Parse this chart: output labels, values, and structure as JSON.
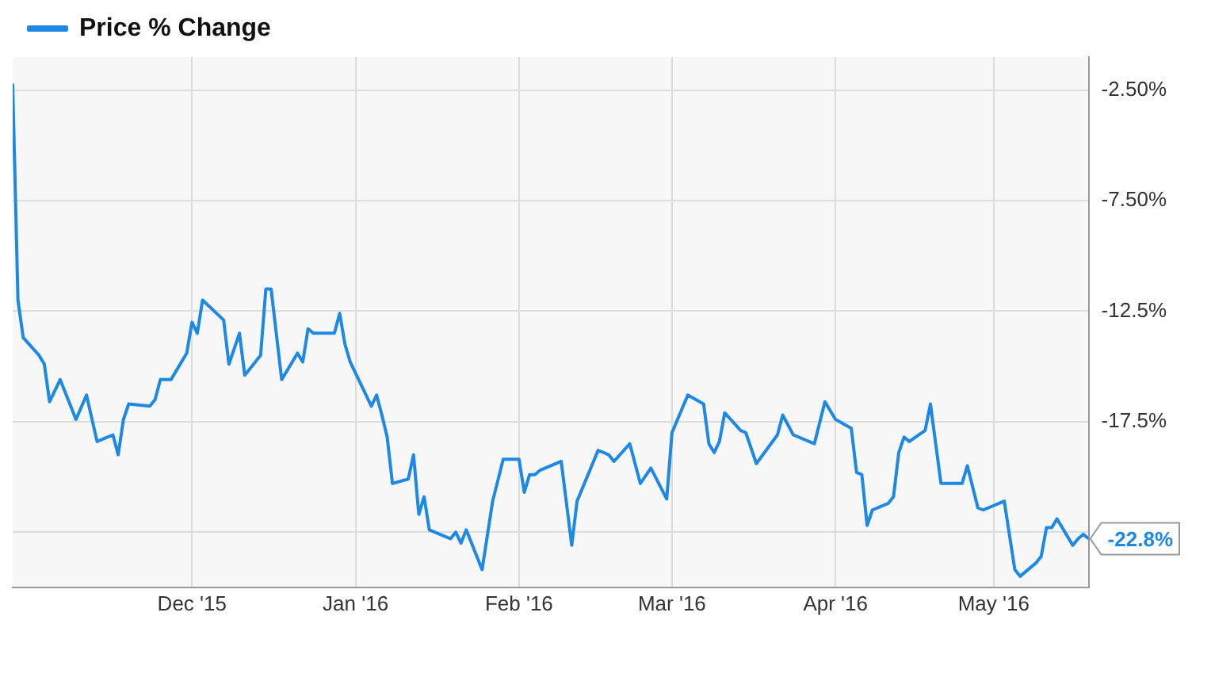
{
  "chart_data": {
    "type": "line",
    "x": [
      "2015-10-28",
      "2015-10-29",
      "2015-10-30",
      "2015-11-02",
      "2015-11-03",
      "2015-11-04",
      "2015-11-06",
      "2015-11-09",
      "2015-11-11",
      "2015-11-13",
      "2015-11-16",
      "2015-11-17",
      "2015-11-18",
      "2015-11-19",
      "2015-11-23",
      "2015-11-24",
      "2015-11-25",
      "2015-11-27",
      "2015-11-30",
      "2015-12-01",
      "2015-12-02",
      "2015-12-03",
      "2015-12-07",
      "2015-12-08",
      "2015-12-10",
      "2015-12-11",
      "2015-12-14",
      "2015-12-15",
      "2015-12-16",
      "2015-12-18",
      "2015-12-21",
      "2015-12-22",
      "2015-12-23",
      "2015-12-24",
      "2015-12-28",
      "2015-12-29",
      "2015-12-30",
      "2015-12-31",
      "2016-01-04",
      "2016-01-05",
      "2016-01-06",
      "2016-01-07",
      "2016-01-08",
      "2016-01-11",
      "2016-01-12",
      "2016-01-13",
      "2016-01-14",
      "2016-01-15",
      "2016-01-19",
      "2016-01-20",
      "2016-01-21",
      "2016-01-22",
      "2016-01-25",
      "2016-01-27",
      "2016-01-29",
      "2016-02-01",
      "2016-02-02",
      "2016-02-03",
      "2016-02-04",
      "2016-02-05",
      "2016-02-09",
      "2016-02-11",
      "2016-02-12",
      "2016-02-16",
      "2016-02-18",
      "2016-02-19",
      "2016-02-22",
      "2016-02-24",
      "2016-02-26",
      "2016-02-29",
      "2016-03-01",
      "2016-03-04",
      "2016-03-07",
      "2016-03-08",
      "2016-03-09",
      "2016-03-10",
      "2016-03-11",
      "2016-03-14",
      "2016-03-15",
      "2016-03-17",
      "2016-03-21",
      "2016-03-22",
      "2016-03-24",
      "2016-03-28",
      "2016-03-30",
      "2016-04-01",
      "2016-04-04",
      "2016-04-05",
      "2016-04-06",
      "2016-04-07",
      "2016-04-08",
      "2016-04-11",
      "2016-04-12",
      "2016-04-13",
      "2016-04-14",
      "2016-04-15",
      "2016-04-18",
      "2016-04-19",
      "2016-04-21",
      "2016-04-25",
      "2016-04-26",
      "2016-04-28",
      "2016-04-29",
      "2016-05-03",
      "2016-05-05",
      "2016-05-06",
      "2016-05-09",
      "2016-05-10",
      "2016-05-11",
      "2016-05-12",
      "2016-05-13",
      "2016-05-16",
      "2016-05-17",
      "2016-05-18",
      "2016-05-19"
    ],
    "series": [
      {
        "name": "Price % Change",
        "color": "#1e88e5",
        "values": [
          -2.2,
          -12.0,
          -13.7,
          -14.5,
          -14.9,
          -16.6,
          -15.6,
          -17.4,
          -16.3,
          -18.4,
          -18.1,
          -19.0,
          -17.4,
          -16.7,
          -16.8,
          -16.5,
          -15.6,
          -15.6,
          -14.4,
          -13.0,
          -13.5,
          -12.0,
          -12.9,
          -14.9,
          -13.5,
          -15.4,
          -14.5,
          -11.5,
          -11.5,
          -15.6,
          -14.4,
          -14.8,
          -13.3,
          -13.5,
          -13.5,
          -12.6,
          -14.0,
          -14.8,
          -16.8,
          -16.3,
          -17.2,
          -18.2,
          -20.3,
          -20.1,
          -19.0,
          -21.7,
          -20.9,
          -22.4,
          -22.8,
          -22.5,
          -23.0,
          -22.4,
          -24.2,
          -21.1,
          -19.2,
          -19.2,
          -20.7,
          -19.9,
          -19.9,
          -19.7,
          -19.3,
          -23.1,
          -21.1,
          -18.8,
          -19.0,
          -19.3,
          -18.5,
          -20.3,
          -19.6,
          -21.0,
          -18.0,
          -16.3,
          -16.7,
          -18.5,
          -18.9,
          -18.4,
          -17.1,
          -17.9,
          -18.0,
          -19.4,
          -18.1,
          -17.2,
          -18.1,
          -18.5,
          -16.6,
          -17.4,
          -17.8,
          -19.8,
          -19.9,
          -22.2,
          -21.5,
          -21.2,
          -20.9,
          -18.9,
          -18.2,
          -18.4,
          -17.9,
          -16.7,
          -20.3,
          -20.3,
          -19.5,
          -21.4,
          -21.5,
          -21.1,
          -24.2,
          -24.5,
          -23.9,
          -23.6,
          -22.3,
          -22.3,
          -21.9,
          -23.1,
          -22.8,
          -22.6,
          -22.8
        ]
      }
    ],
    "xlim": [
      "2015-10-28",
      "2016-05-19"
    ],
    "xticks": [
      {
        "value": "2015-12-01",
        "label": "Dec '15"
      },
      {
        "value": "2016-01-01",
        "label": "Jan '16"
      },
      {
        "value": "2016-02-01",
        "label": "Feb '16"
      },
      {
        "value": "2016-03-01",
        "label": "Mar '16"
      },
      {
        "value": "2016-04-01",
        "label": "Apr '16"
      },
      {
        "value": "2016-05-01",
        "label": "May '16"
      }
    ],
    "ylim": [
      -25,
      -1
    ],
    "yticks": [
      {
        "value": -22.5,
        "label": null
      },
      {
        "value": -17.5,
        "label": "-17.5%"
      },
      {
        "value": -12.5,
        "label": "-12.5%"
      },
      {
        "value": -7.5,
        "label": "-7.50%"
      },
      {
        "value": -2.5,
        "label": "-2.50%"
      }
    ],
    "annotations": [
      {
        "text": "-22.8%",
        "x": "2016-05-19",
        "y": -22.8
      }
    ],
    "grid": true,
    "legend": "top left",
    "marker": "none",
    "line_style": "solid"
  }
}
